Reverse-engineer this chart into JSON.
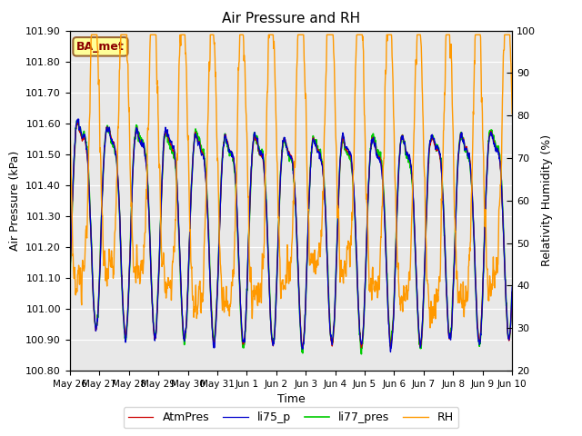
{
  "title": "Air Pressure and RH",
  "xlabel": "Time",
  "ylabel_left": "Air Pressure (kPa)",
  "ylabel_right": "Relativity Humidity (%)",
  "ylim_left": [
    100.8,
    101.9
  ],
  "ylim_right": [
    20,
    100
  ],
  "yticks_left": [
    100.8,
    100.9,
    101.0,
    101.1,
    101.2,
    101.3,
    101.4,
    101.5,
    101.6,
    101.7,
    101.8,
    101.9
  ],
  "yticks_right": [
    20,
    30,
    40,
    50,
    60,
    70,
    80,
    90,
    100
  ],
  "xtick_labels": [
    "May 26",
    "May 27",
    "May 28",
    "May 29",
    "May 30",
    "May 31",
    "Jun 1",
    "Jun 2",
    "Jun 3",
    "Jun 4",
    "Jun 5",
    "Jun 6",
    "Jun 7",
    "Jun 8",
    "Jun 9",
    "Jun 10"
  ],
  "color_atmpres": "#cc0000",
  "color_li75": "#0000cc",
  "color_li77": "#00cc00",
  "color_rh": "#ff9900",
  "legend_labels": [
    "AtmPres",
    "li75_p",
    "li77_pres",
    "RH"
  ],
  "annotation": "BA_met",
  "bg_color": "#e8e8e8",
  "fig_bg": "#ffffff",
  "n_points": 1500
}
